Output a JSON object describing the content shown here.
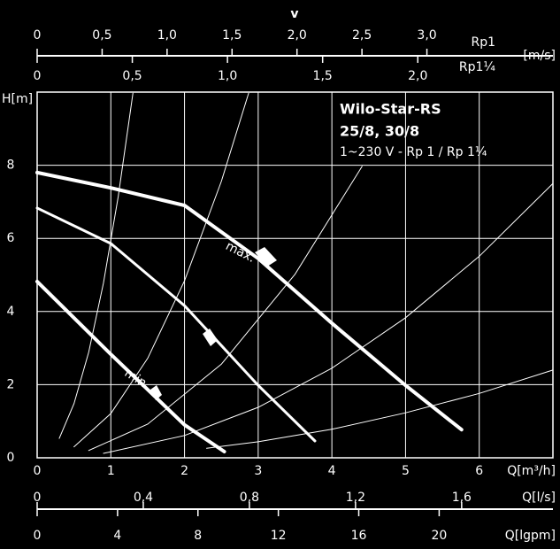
{
  "chart_data": {
    "type": "line",
    "title": "Wilo-Star-RS",
    "subtitle": "25/8, 30/8",
    "note": "1~230 V - Rp 1 / Rp 1¼",
    "x_label": "Q[m³/h]",
    "y_label": "H[m]",
    "xlim": [
      0,
      7
    ],
    "ylim": [
      0,
      10
    ],
    "xticks": [
      0,
      1,
      2,
      3,
      4,
      5,
      6
    ],
    "yticks": [
      0,
      2,
      4,
      6,
      8
    ],
    "grid": true,
    "annotations": [
      "max.",
      "min."
    ],
    "series": [
      {
        "color": "#ffffff",
        "width": 4,
        "x": [
          0,
          1,
          2,
          3,
          4,
          5,
          5.76
        ],
        "values": [
          7.8,
          7.38,
          6.9,
          5.45,
          3.68,
          1.98,
          0.77
        ]
      },
      {
        "color": "#ffffff",
        "width": 3,
        "x": [
          0,
          1,
          2,
          3,
          3.77
        ],
        "values": [
          6.83,
          5.86,
          4.16,
          1.98,
          0.46
        ]
      },
      {
        "color": "#ffffff",
        "width": 4,
        "x": [
          0,
          1,
          2,
          2.54
        ],
        "values": [
          4.82,
          2.83,
          0.9,
          0.17
        ]
      },
      {
        "color": "#ffffff",
        "width": 1,
        "x": [
          0.3,
          0.5,
          0.7,
          0.9,
          1.1,
          1.3
        ],
        "values": [
          0.53,
          1.48,
          2.89,
          4.78,
          7.14,
          9.97
        ]
      },
      {
        "color": "#ffffff",
        "width": 1,
        "x": [
          0.5,
          1,
          1.5,
          2,
          2.5,
          2.87
        ],
        "values": [
          0.3,
          1.21,
          2.72,
          4.84,
          7.56,
          9.97
        ]
      },
      {
        "color": "#ffffff",
        "width": 1,
        "x": [
          0.7,
          1.5,
          2.5,
          3.5,
          4.41
        ],
        "values": [
          0.2,
          0.92,
          2.56,
          5.02,
          7.97
        ]
      },
      {
        "color": "#ffffff",
        "width": 1,
        "x": [
          0.9,
          2,
          3,
          4,
          5,
          6,
          7
        ],
        "values": [
          0.12,
          0.61,
          1.38,
          2.45,
          3.83,
          5.51,
          7.5
        ]
      },
      {
        "color": "#ffffff",
        "width": 1,
        "x": [
          2.3,
          3,
          4,
          5,
          6,
          7
        ],
        "values": [
          0.26,
          0.44,
          0.78,
          1.23,
          1.76,
          2.4
        ]
      }
    ],
    "secondary_axes": [
      {
        "label": "Rp1",
        "title": "v",
        "unit": "[m/s]",
        "lim": [
          0,
          3.97
        ],
        "ticks": [
          0,
          {
            "value": 0.5,
            "label": "0,5"
          },
          {
            "value": 1.0,
            "label": "1,0"
          },
          {
            "value": 1.5,
            "label": "1,5"
          },
          {
            "value": 2.0,
            "label": "2,0"
          },
          {
            "value": 2.5,
            "label": "2,5"
          },
          {
            "value": 3.0,
            "label": "3,0"
          }
        ]
      },
      {
        "label": "Rp1¼",
        "lim": [
          0,
          2.71
        ],
        "ticks": [
          0,
          {
            "value": 0.5,
            "label": "0,5"
          },
          {
            "value": 1.0,
            "label": "1,0"
          },
          {
            "value": 1.5,
            "label": "1,5"
          },
          {
            "value": 2.0,
            "label": "2,0"
          }
        ]
      },
      {
        "label": "Q[l/s]",
        "lim": [
          0,
          1.944
        ],
        "ticks": [
          0,
          {
            "value": 0.4,
            "label": "0,4"
          },
          {
            "value": 0.8,
            "label": "0,8"
          },
          {
            "value": 1.2,
            "label": "1,2"
          },
          {
            "value": 1.6,
            "label": "1,6"
          }
        ]
      },
      {
        "label": "Q[lgpm]",
        "lim": [
          0,
          25.66
        ],
        "ticks": [
          0,
          4,
          8,
          12,
          16,
          20
        ]
      }
    ]
  }
}
